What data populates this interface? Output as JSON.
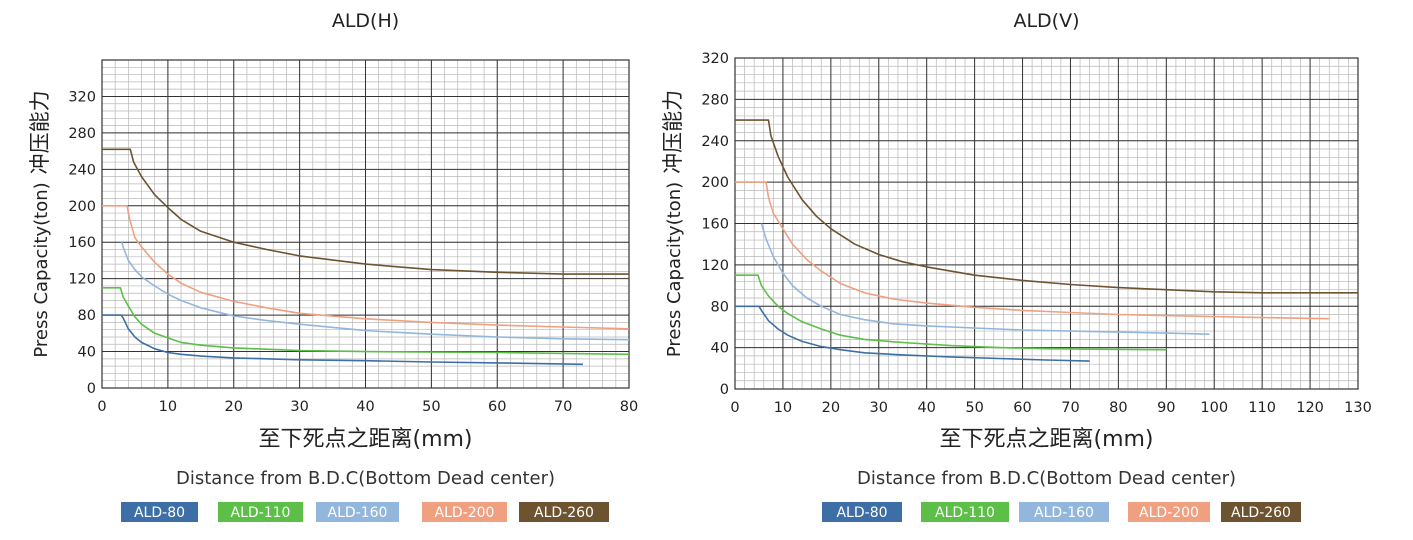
{
  "chart_data": [
    {
      "type": "line",
      "title": "ALD(H)",
      "ylabel_en": "Press Capacity(ton)",
      "ylabel_cn": "冲压能力",
      "xlabel_cn": "至下死点之距离(mm)",
      "xlabel_en": "Distance from B.D.C(Bottom Dead center)",
      "xlim": [
        0,
        80
      ],
      "ylim": [
        0,
        360
      ],
      "xticks": [
        0,
        10,
        20,
        30,
        40,
        50,
        60,
        70,
        80
      ],
      "yticks": [
        0,
        40,
        80,
        120,
        160,
        200,
        240,
        280,
        320
      ],
      "grid": true,
      "series": [
        {
          "name": "ALD-80",
          "color": "#3d6fa6",
          "x": [
            0,
            2.9,
            3.2,
            4,
            5,
            6,
            8,
            10,
            12,
            15,
            20,
            30,
            40,
            50,
            60,
            73
          ],
          "y": [
            80,
            80,
            77,
            65,
            56,
            50,
            43,
            39,
            37,
            35,
            33,
            31,
            30,
            28.5,
            27.5,
            26
          ]
        },
        {
          "name": "ALD-110",
          "color": "#5cbf47",
          "x": [
            0,
            2.8,
            3.2,
            4,
            5,
            6,
            8,
            10,
            12,
            15,
            20,
            30,
            40,
            60,
            80
          ],
          "y": [
            110,
            110,
            100,
            90,
            78,
            70,
            60,
            55,
            50,
            47,
            44,
            41,
            40,
            39,
            37
          ]
        },
        {
          "name": "ALD-160",
          "color": "#93b6dc",
          "x": [
            3,
            3.2,
            4,
            5,
            6,
            8,
            10,
            12,
            15,
            20,
            25,
            30,
            40,
            50,
            60,
            70,
            80
          ],
          "y": [
            160,
            155,
            140,
            130,
            122,
            112,
            103,
            96,
            88,
            79,
            74,
            70,
            63,
            59,
            56,
            54,
            53
          ]
        },
        {
          "name": "ALD-200",
          "color": "#f0a080",
          "x": [
            0,
            3.8,
            4.2,
            5,
            6,
            8,
            10,
            12,
            15,
            20,
            25,
            30,
            40,
            50,
            60,
            70,
            80
          ],
          "y": [
            200,
            200,
            185,
            165,
            155,
            138,
            125,
            115,
            105,
            95,
            88,
            82,
            76,
            72,
            69,
            67,
            65
          ]
        },
        {
          "name": "ALD-260",
          "color": "#6e5330",
          "x": [
            0,
            4.3,
            4.8,
            6,
            8,
            10,
            12,
            15,
            20,
            25,
            30,
            40,
            50,
            60,
            70,
            80
          ],
          "y": [
            262,
            262,
            248,
            232,
            212,
            198,
            185,
            172,
            160,
            152,
            145,
            136,
            130,
            127,
            125,
            125
          ]
        }
      ],
      "legend": [
        "ALD-80",
        "ALD-110",
        "ALD-160",
        "ALD-200",
        "ALD-260"
      ],
      "legend_placement": "bottom"
    },
    {
      "type": "line",
      "title": "ALD(V)",
      "ylabel_en": "Press Capacity(ton)",
      "ylabel_cn": "冲压能力",
      "xlabel_cn": "至下死点之距离(mm)",
      "xlabel_en": "Distance from B.D.C(Bottom Dead center)",
      "xlim": [
        0,
        130
      ],
      "ylim": [
        0,
        320
      ],
      "xticks": [
        0,
        10,
        20,
        30,
        40,
        50,
        60,
        70,
        80,
        90,
        100,
        110,
        120,
        130
      ],
      "yticks": [
        0,
        40,
        80,
        120,
        160,
        200,
        240,
        280,
        320
      ],
      "grid": true,
      "series": [
        {
          "name": "ALD-80",
          "color": "#3d6fa6",
          "x": [
            0,
            5,
            5.5,
            7,
            9,
            11,
            14,
            18,
            22,
            27,
            35,
            45,
            55,
            65,
            74
          ],
          "y": [
            80,
            80,
            76,
            66,
            58,
            52,
            46,
            41,
            38,
            35,
            33,
            31,
            29.5,
            28,
            27
          ]
        },
        {
          "name": "ALD-110",
          "color": "#5cbf47",
          "x": [
            0,
            4.8,
            5.5,
            7,
            9,
            11,
            14,
            18,
            22,
            27,
            35,
            45,
            55,
            65,
            75,
            90
          ],
          "y": [
            110,
            110,
            100,
            90,
            80,
            73,
            65,
            58,
            52,
            48,
            45,
            42,
            40,
            39,
            38.5,
            38
          ]
        },
        {
          "name": "ALD-160",
          "color": "#93b6dc",
          "x": [
            5.5,
            6.5,
            8,
            10,
            12,
            15,
            18,
            22,
            27,
            33,
            40,
            50,
            60,
            70,
            80,
            90,
            99
          ],
          "y": [
            160,
            145,
            128,
            112,
            100,
            88,
            80,
            72,
            67,
            63,
            61,
            59,
            57,
            56,
            55,
            54,
            53
          ]
        },
        {
          "name": "ALD-200",
          "color": "#f0a080",
          "x": [
            0,
            6.5,
            7,
            8,
            10,
            12,
            15,
            18,
            22,
            27,
            33,
            40,
            50,
            60,
            70,
            80,
            90,
            100,
            110,
            124
          ],
          "y": [
            200,
            200,
            185,
            170,
            155,
            140,
            125,
            114,
            102,
            93,
            87,
            83,
            79,
            76,
            74,
            72,
            71,
            70,
            69,
            68
          ]
        },
        {
          "name": "ALD-260",
          "color": "#6e5330",
          "x": [
            0,
            7,
            7.5,
            9,
            11,
            14,
            17,
            20,
            25,
            30,
            35,
            40,
            50,
            60,
            70,
            80,
            90,
            100,
            110,
            120,
            130
          ],
          "y": [
            260,
            260,
            245,
            225,
            205,
            183,
            167,
            155,
            140,
            130,
            123,
            118,
            110,
            105,
            101,
            98,
            96,
            94,
            93,
            93,
            93
          ]
        }
      ],
      "legend": [
        "ALD-80",
        "ALD-110",
        "ALD-160",
        "ALD-200",
        "ALD-260"
      ],
      "legend_placement": "bottom"
    }
  ]
}
